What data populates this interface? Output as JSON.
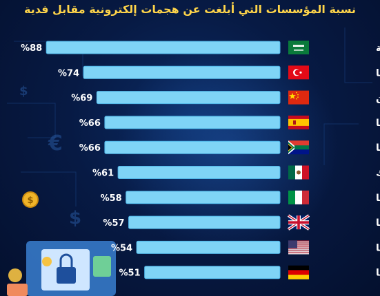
{
  "title": "نسبة المؤسسات التي أبلغت عن هجمات إلكترونية مقابل فدية",
  "colors": {
    "bar": "#7fd4f6",
    "bar_edge": "#4fb6e8",
    "title": "#ffd54a",
    "background": "#071a44"
  },
  "chart_data": {
    "type": "bar",
    "orientation": "horizontal",
    "categories": [
      "السعودية",
      "تركيا",
      "الصين",
      "إسبانيا",
      "ج.أفريقيا",
      "المكسيك",
      "إيطاليا",
      "بريطانيا",
      "أمريكا",
      "ألمانيا"
    ],
    "values": [
      88,
      74,
      69,
      66,
      66,
      61,
      58,
      57,
      54,
      51
    ],
    "value_labels": [
      "%88",
      "%74",
      "%69",
      "%66",
      "%66",
      "%61",
      "%58",
      "%57",
      "%54",
      "%51"
    ],
    "flags": [
      "saudi-flag-icon",
      "turkey-flag-icon",
      "china-flag-icon",
      "spain-flag-icon",
      "south-africa-flag-icon",
      "mexico-flag-icon",
      "italy-flag-icon",
      "uk-flag-icon",
      "usa-flag-icon",
      "germany-flag-icon"
    ],
    "xlim": [
      0,
      100
    ],
    "grid": false,
    "legend": "none"
  }
}
